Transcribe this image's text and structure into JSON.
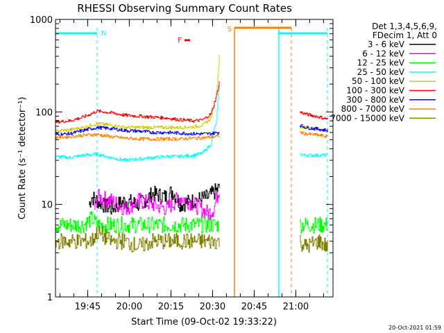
{
  "chart_data": {
    "type": "line",
    "title": "RHESSI Observing Summary Count Rates",
    "xlabel": "Start Time (09-Oct-02 19:33:22)",
    "ylabel": "Count Rate (s⁻¹ detector⁻¹)",
    "yscale": "log",
    "ylim": [
      1,
      1000
    ],
    "xlim_minutes": [
      0,
      100
    ],
    "x_unit": "minutes after 19:33:22",
    "x_ticks": [
      {
        "label": "19:45",
        "t": 11.6
      },
      {
        "label": "20:00",
        "t": 26.6
      },
      {
        "label": "20:15",
        "t": 41.6
      },
      {
        "label": "20:30",
        "t": 56.6
      },
      {
        "label": "20:45",
        "t": 71.6
      },
      {
        "label": "21:00",
        "t": 86.6
      }
    ],
    "y_ticks": [
      {
        "label": "1",
        "v": 1
      },
      {
        "label": "10",
        "v": 10
      },
      {
        "label": "100",
        "v": 100
      },
      {
        "label": "1000",
        "v": 1000
      }
    ],
    "legend_header": [
      "Det 1,3,4,5,6,9,",
      "FDecim 1, Att 0"
    ],
    "legend_position": "right",
    "series": [
      {
        "name": "3 - 6 keV",
        "color": "#000000",
        "x": [
          12,
          13,
          15,
          17,
          20,
          25,
          30,
          35,
          40,
          42,
          45,
          50,
          55,
          59
        ],
        "y": [
          10,
          12,
          11,
          10,
          9,
          11,
          10,
          13,
          12,
          14,
          10,
          11,
          12,
          15
        ]
      },
      {
        "name": "6 - 12 keV",
        "color": "#ff00ff",
        "x": [
          14,
          15,
          20,
          25,
          30,
          35,
          40,
          45,
          50,
          55,
          57,
          59
        ],
        "y": [
          9,
          12,
          11,
          9,
          11,
          10,
          9,
          12,
          10,
          8,
          9,
          15
        ]
      },
      {
        "name": "12 - 25 keV",
        "color": "#00ff00",
        "x": [
          0,
          5,
          10,
          13,
          15,
          20,
          25,
          30,
          35,
          40,
          45,
          50,
          55,
          58,
          59,
          88,
          90,
          95,
          98
        ],
        "y": [
          6,
          6,
          6,
          7,
          6,
          6,
          6,
          6,
          6,
          6,
          6,
          6,
          6,
          6,
          6,
          6,
          6,
          6,
          6
        ]
      },
      {
        "name": "25 - 50 keV",
        "color": "#00ffff",
        "x": [
          0,
          5,
          10,
          15,
          20,
          25,
          30,
          35,
          40,
          45,
          50,
          53,
          56,
          58,
          59,
          88,
          90,
          95,
          98
        ],
        "y": [
          33,
          32,
          34,
          35,
          32,
          30,
          31,
          32,
          33,
          33,
          34,
          36,
          45,
          80,
          220,
          35,
          34,
          34,
          34
        ]
      },
      {
        "name": "50 - 100 keV",
        "color": "#cccc00",
        "x": [
          0,
          5,
          10,
          15,
          20,
          25,
          30,
          35,
          40,
          45,
          50,
          53,
          56,
          58,
          59,
          88,
          90,
          95,
          98
        ],
        "y": [
          62,
          64,
          68,
          75,
          72,
          68,
          68,
          68,
          68,
          68,
          69,
          72,
          85,
          160,
          400,
          70,
          68,
          65,
          63
        ]
      },
      {
        "name": "100 - 300 keV",
        "color": "#ff0000",
        "x": [
          0,
          5,
          10,
          15,
          20,
          25,
          30,
          35,
          40,
          45,
          50,
          53,
          56,
          58,
          59,
          88,
          90,
          95,
          98
        ],
        "y": [
          78,
          80,
          88,
          102,
          98,
          92,
          90,
          88,
          86,
          82,
          80,
          82,
          95,
          150,
          210,
          100,
          95,
          88,
          84
        ]
      },
      {
        "name": "300 - 800 keV",
        "color": "#0000ff",
        "x": [
          0,
          5,
          10,
          15,
          20,
          25,
          30,
          35,
          40,
          45,
          50,
          55,
          59,
          88,
          90,
          95,
          98
        ],
        "y": [
          57,
          58,
          63,
          68,
          66,
          63,
          62,
          60,
          60,
          59,
          58,
          58,
          60,
          72,
          68,
          65,
          63
        ]
      },
      {
        "name": "800 - 7000 keV",
        "color": "#ff8000",
        "x": [
          0,
          5,
          10,
          15,
          20,
          25,
          30,
          35,
          40,
          45,
          50,
          55,
          59,
          88,
          90,
          95,
          98
        ],
        "y": [
          53,
          54,
          56,
          57,
          54,
          52,
          51,
          51,
          51,
          51,
          52,
          53,
          55,
          60,
          58,
          56,
          54
        ]
      },
      {
        "name": "7000 - 15000 keV",
        "color": "#808000",
        "x": [
          0,
          5,
          10,
          13,
          15,
          20,
          25,
          30,
          35,
          40,
          45,
          50,
          55,
          59,
          88,
          90,
          95,
          98
        ],
        "y": [
          4,
          4,
          4,
          4,
          5,
          4,
          4,
          3.5,
          4,
          4,
          4,
          4,
          4,
          4,
          4,
          3.5,
          4,
          3.5
        ]
      }
    ],
    "flags": [
      {
        "label": "N",
        "color": "#00ffff"
      },
      {
        "label": "S",
        "color": "#ff8000"
      },
      {
        "label": "F",
        "color": "#ff0000"
      }
    ],
    "footer_date": "20-Oct-2021 01:59"
  }
}
